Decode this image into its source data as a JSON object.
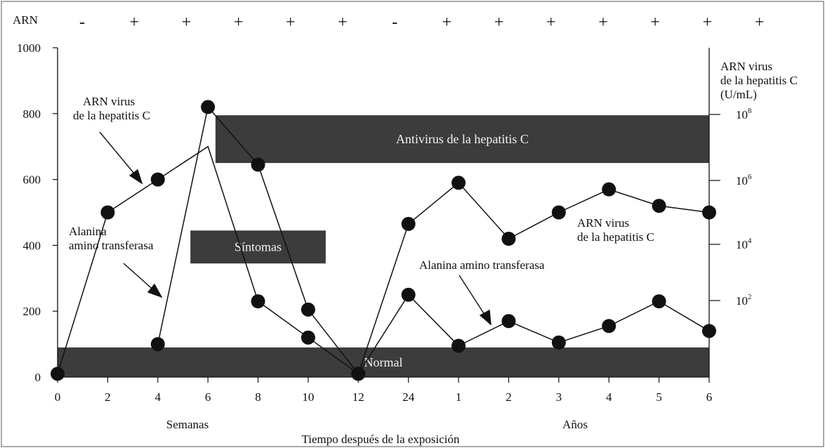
{
  "chart_data": {
    "type": "line",
    "arn_row": {
      "label": "ARN",
      "signs": [
        "-",
        "+",
        "+",
        "+",
        "+",
        "+",
        "-",
        "+",
        "+",
        "+",
        "+",
        "+",
        "+",
        "+"
      ]
    },
    "x_ticks": [
      "0",
      "2",
      "4",
      "6",
      "8",
      "10",
      "12",
      "24",
      "1",
      "2",
      "3",
      "4",
      "5",
      "6"
    ],
    "x_group_labels": {
      "weeks": "Semanas",
      "years": "Años"
    },
    "xlabel": "Tiempo después de la exposición",
    "y_left": {
      "ticks": [
        "0",
        "200",
        "400",
        "600",
        "800",
        "1000"
      ],
      "ylim": [
        0,
        1000
      ]
    },
    "y_right": {
      "title_lines": [
        "ARN virus",
        "de la hepatitis C",
        "(U/mL)"
      ],
      "ticks": [
        {
          "base": "10",
          "exp": "2"
        },
        {
          "base": "10",
          "exp": "4"
        },
        {
          "base": "10",
          "exp": "6"
        },
        {
          "base": "10",
          "exp": "8"
        }
      ]
    },
    "bands": [
      {
        "label": "Normal",
        "y_from": 0,
        "y_to": 90
      },
      {
        "label": "Síntomas",
        "x_from": 5.3,
        "x_to": 10.7,
        "y_from": 345,
        "y_to": 445
      },
      {
        "label": "Antivirus de la hepatitis C",
        "x_from": 6.3,
        "x_to": 28.0,
        "y_from": 650,
        "y_to": 795
      }
    ],
    "series": [
      {
        "name": "ARN virus de la hepatitis C",
        "x": [
          0,
          2,
          4,
          6,
          8,
          10,
          12,
          14,
          16,
          18,
          20,
          22,
          24,
          26,
          28
        ],
        "y": [
          10,
          500,
          600,
          700,
          230,
          120,
          10,
          250,
          95,
          170,
          105,
          155,
          230,
          140,
          null
        ],
        "markers_at_index": [
          0,
          1,
          2,
          4,
          5,
          6,
          7,
          8,
          9,
          10,
          11,
          12,
          13
        ]
      },
      {
        "name": "Alanina amino transferasa",
        "x": [
          4,
          6,
          8,
          10,
          12,
          14,
          16,
          18,
          20,
          22,
          24,
          26
        ],
        "y": [
          100,
          820,
          645,
          205,
          10,
          465,
          590,
          420,
          500,
          570,
          520,
          500
        ]
      }
    ],
    "annotations": [
      {
        "lines": [
          "ARN virus",
          "de la hepatitis C"
        ]
      },
      {
        "lines": [
          "Alanina",
          "amino transferasa"
        ]
      },
      {
        "lines": [
          "ARN virus",
          "de la hepatitis C"
        ]
      },
      {
        "lines": [
          "Alanina amino transferasa"
        ]
      }
    ]
  }
}
